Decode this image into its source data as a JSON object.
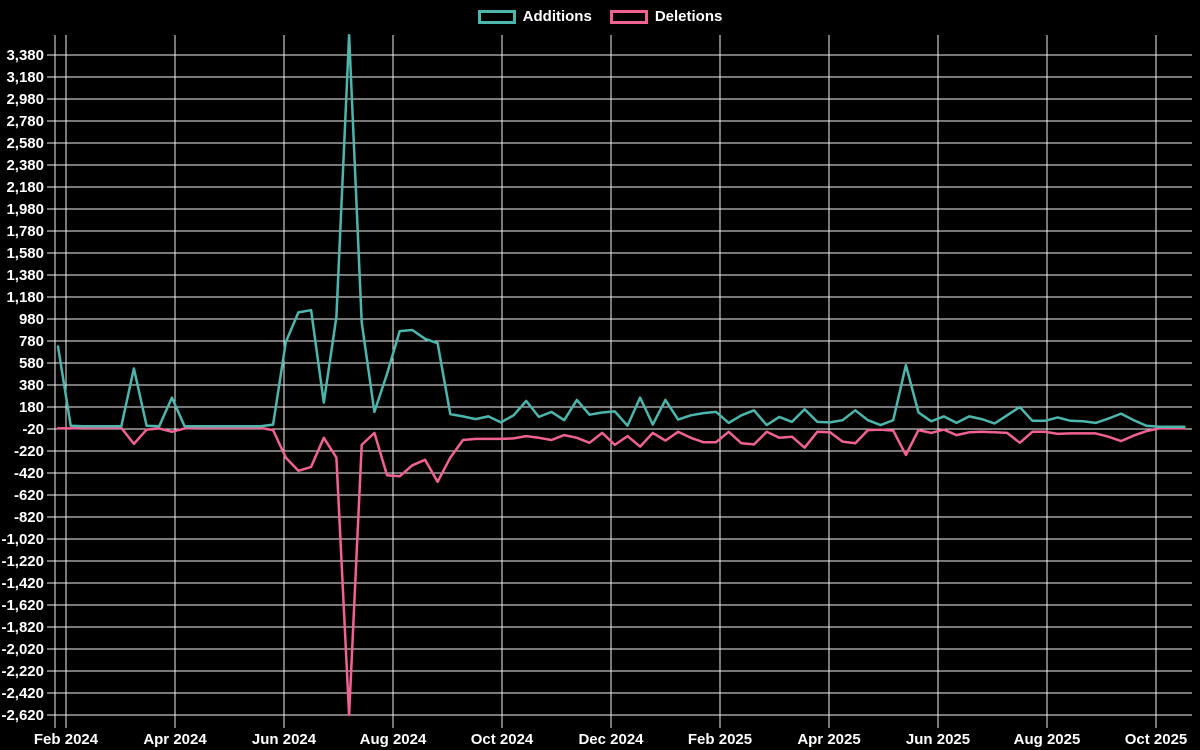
{
  "legend": {
    "items": [
      {
        "label": "Additions",
        "color": "#4db6ac"
      },
      {
        "label": "Deletions",
        "color": "#f06292"
      }
    ]
  },
  "chart_data": {
    "type": "line",
    "title": "",
    "xlabel": "",
    "ylabel": "",
    "x_unit": "week",
    "grid": true,
    "legend_position": "top-center",
    "background_color": "#000000",
    "grid_color": "#f0f0f0",
    "ylim": [
      -2620,
      3560
    ],
    "y_tick_step": 200,
    "y_ticks": [
      3380,
      3180,
      2980,
      2780,
      2580,
      2380,
      2180,
      1980,
      1780,
      1580,
      1380,
      1180,
      980,
      780,
      580,
      380,
      180,
      -20,
      -220,
      -420,
      -620,
      -820,
      -1020,
      -1220,
      -1420,
      -1620,
      -1820,
      -2020,
      -2220,
      -2420,
      -2620
    ],
    "y_tick_labels": [
      "3,380",
      "3,180",
      "2,980",
      "2,780",
      "2,580",
      "2,380",
      "2,180",
      "1,980",
      "1,780",
      "1,580",
      "1,380",
      "1,180",
      "980",
      "780",
      "580",
      "380",
      "180",
      "-20",
      "-220",
      "-420",
      "-620",
      "-820",
      "-1,020",
      "-1,220",
      "-1,420",
      "-1,620",
      "-1,820",
      "-2,020",
      "-2,220",
      "-2,420",
      "-2,620"
    ],
    "x_tick_labels": [
      "Feb 2024",
      "Apr 2024",
      "Jun 2024",
      "Aug 2024",
      "Oct 2024",
      "Dec 2024",
      "Feb 2025",
      "Apr 2025",
      "Jun 2025",
      "Aug 2025",
      "Oct 2025"
    ],
    "series": [
      {
        "name": "Additions",
        "color": "#4db6ac",
        "values": [
          730,
          10,
          5,
          5,
          5,
          5,
          530,
          10,
          5,
          265,
          5,
          5,
          5,
          5,
          5,
          5,
          5,
          20,
          770,
          1040,
          1060,
          220,
          1000,
          3560,
          950,
          135,
          480,
          870,
          880,
          800,
          760,
          115,
          95,
          70,
          95,
          40,
          105,
          235,
          90,
          135,
          60,
          245,
          110,
          130,
          140,
          10,
          265,
          20,
          245,
          65,
          105,
          125,
          135,
          35,
          105,
          150,
          15,
          90,
          45,
          160,
          45,
          40,
          60,
          150,
          60,
          15,
          60,
          560,
          130,
          50,
          95,
          35,
          95,
          70,
          30,
          105,
          180,
          55,
          55,
          85,
          55,
          50,
          35,
          75,
          120,
          60,
          10,
          0,
          0,
          0
        ]
      },
      {
        "name": "Deletions",
        "color": "#f06292",
        "values": [
          -15,
          -15,
          -10,
          -10,
          -10,
          -10,
          -155,
          -25,
          -15,
          -45,
          -15,
          -10,
          -10,
          -10,
          -10,
          -10,
          -10,
          -30,
          -280,
          -400,
          -365,
          -100,
          -280,
          -2620,
          -165,
          -55,
          -440,
          -450,
          -350,
          -300,
          -500,
          -280,
          -120,
          -110,
          -110,
          -110,
          -105,
          -85,
          -100,
          -120,
          -75,
          -100,
          -145,
          -55,
          -165,
          -85,
          -180,
          -55,
          -125,
          -45,
          -100,
          -140,
          -140,
          -45,
          -150,
          -160,
          -45,
          -100,
          -90,
          -190,
          -45,
          -50,
          -135,
          -150,
          -30,
          -25,
          -35,
          -255,
          -30,
          -55,
          -25,
          -75,
          -50,
          -45,
          -50,
          -55,
          -145,
          -45,
          -45,
          -65,
          -60,
          -60,
          -60,
          -90,
          -130,
          -80,
          -40,
          -15,
          -15,
          -15
        ]
      }
    ]
  }
}
